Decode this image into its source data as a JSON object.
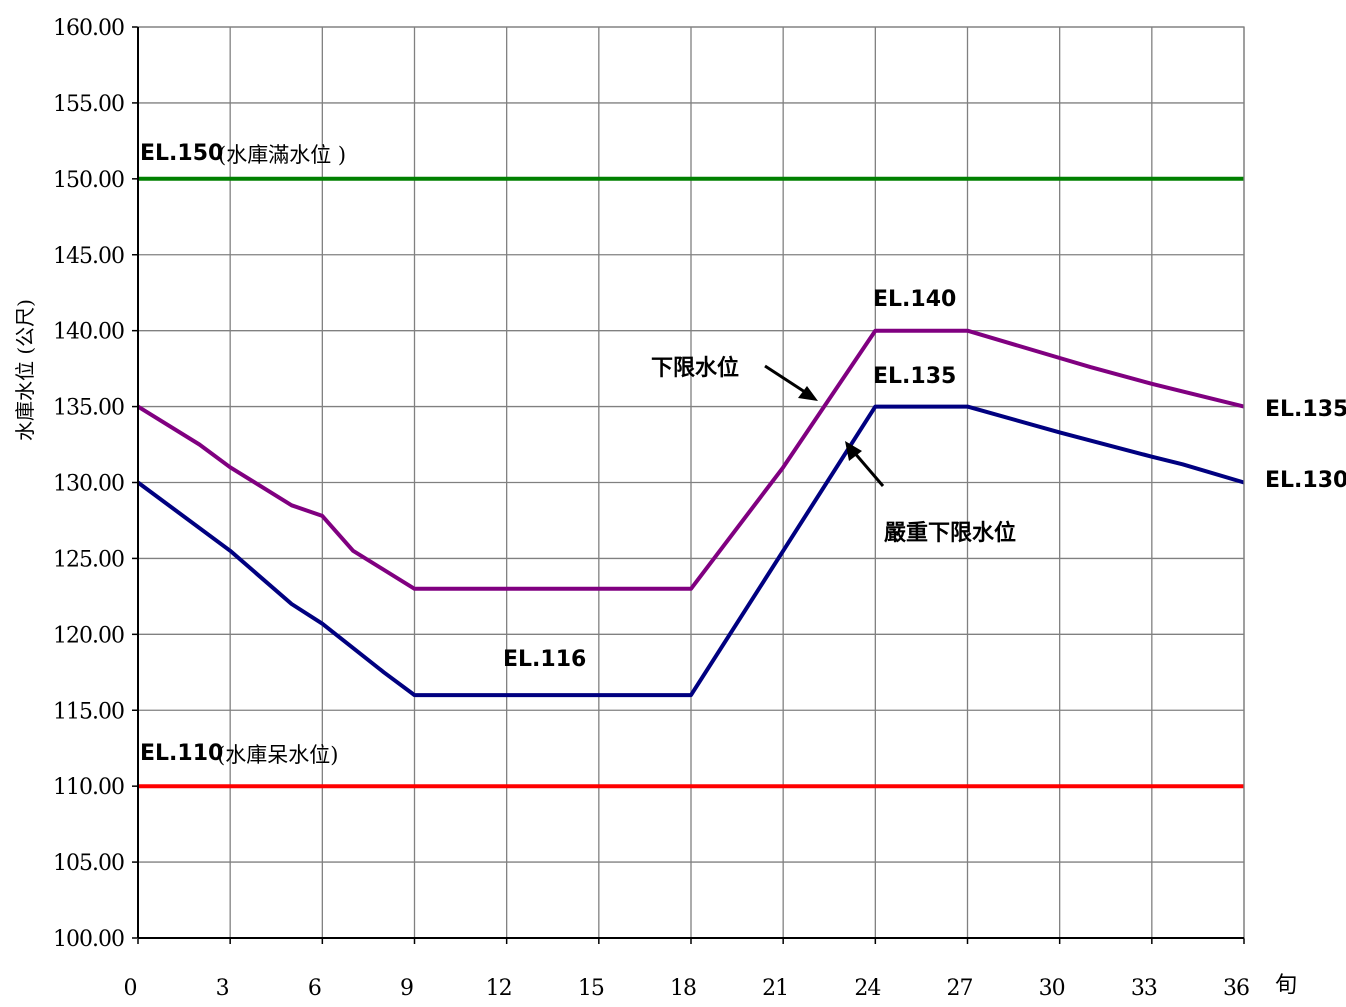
{
  "chart_data": {
    "type": "line",
    "title": "",
    "xlabel": "旬",
    "ylabel": "水庫水位 (公尺)",
    "xlim": [
      0,
      36
    ],
    "ylim": [
      100,
      160
    ],
    "x_ticks": [
      "0",
      "3",
      "6",
      "9",
      "12",
      "15",
      "18",
      "21",
      "24",
      "27",
      "30",
      "33",
      "36"
    ],
    "y_ticks": [
      "100.00",
      "105.00",
      "110.00",
      "115.00",
      "120.00",
      "125.00",
      "130.00",
      "135.00",
      "140.00",
      "145.00",
      "150.00",
      "155.00",
      "160.00"
    ],
    "grid": true,
    "series": [
      {
        "id": "full-level",
        "color": "#008000",
        "x": [
          0,
          36
        ],
        "y": [
          150,
          150
        ]
      },
      {
        "id": "lower-limit",
        "color": "#800080",
        "x": [
          0,
          2,
          3,
          5,
          6,
          7,
          9,
          18,
          21,
          24,
          27,
          30,
          31,
          33,
          34,
          36
        ],
        "y": [
          135,
          132.5,
          131,
          128.5,
          127.8,
          125.5,
          123,
          123,
          131,
          140,
          140,
          138.2,
          137.6,
          136.5,
          136,
          135
        ]
      },
      {
        "id": "severe-lower-limit",
        "color": "#000080",
        "x": [
          0,
          3,
          5,
          6,
          8,
          9,
          18,
          21,
          24,
          27,
          30,
          33,
          34,
          36
        ],
        "y": [
          130,
          125.5,
          122,
          120.7,
          117.5,
          116,
          116,
          125.5,
          135,
          135,
          133.3,
          131.7,
          131.2,
          130
        ]
      },
      {
        "id": "dead-level",
        "color": "#ff0000",
        "x": [
          0,
          36
        ],
        "y": [
          110,
          110
        ]
      }
    ],
    "annotations": {
      "full_el": "EL.150",
      "full_name": "(水庫滿水位  )",
      "dead_el": "EL.110",
      "dead_name": "(水庫呆水位)",
      "lower_limit_label": "下限水位",
      "severe_label": "嚴重下限水位",
      "el140": "EL.140",
      "el135_mid": "EL.135",
      "el116": "EL.116",
      "el135_end": "EL.135",
      "el130_end": "EL.130"
    }
  }
}
